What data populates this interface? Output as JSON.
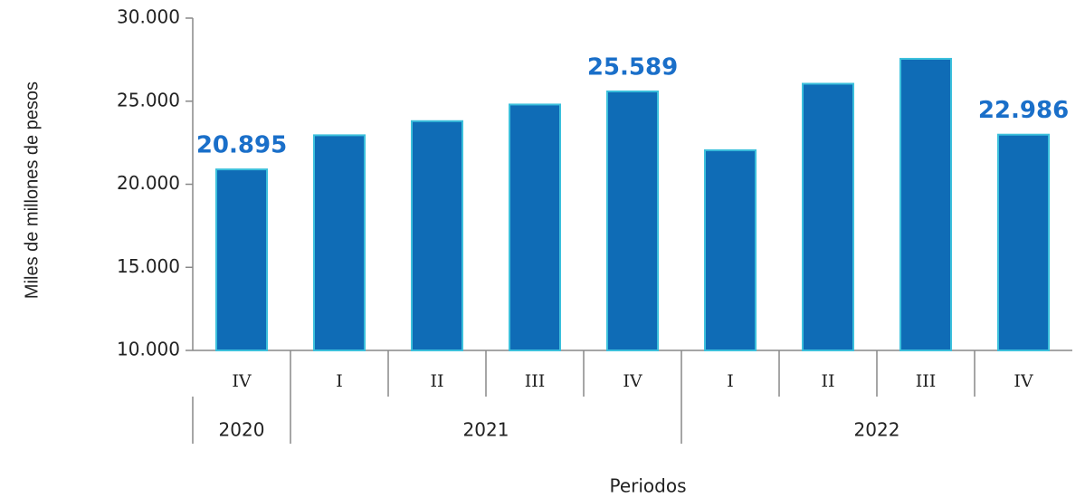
{
  "chart_data": {
    "type": "bar",
    "y_label": "Miles de millones de pesos",
    "x_label": "Periodos",
    "categories": [
      "IV",
      "I",
      "II",
      "III",
      "IV",
      "I",
      "II",
      "III",
      "IV"
    ],
    "years": [
      "2020",
      "2021",
      null,
      null,
      null,
      "2022",
      null,
      null,
      null
    ],
    "values": [
      20895,
      22950,
      23800,
      24800,
      25589,
      22050,
      26050,
      27550,
      22986
    ],
    "value_labels": [
      "20.895",
      null,
      null,
      null,
      "25.589",
      null,
      null,
      null,
      "22.986"
    ],
    "color": "#0f6cb6",
    "ylim": [
      10000,
      30000
    ],
    "yticks": [
      {
        "value": 10000,
        "label": "10.000"
      },
      {
        "value": 15000,
        "label": "15.000"
      },
      {
        "value": 20000,
        "label": "20.000"
      },
      {
        "value": 25000,
        "label": "25.000"
      },
      {
        "value": 30000,
        "label": "30.000"
      }
    ]
  }
}
